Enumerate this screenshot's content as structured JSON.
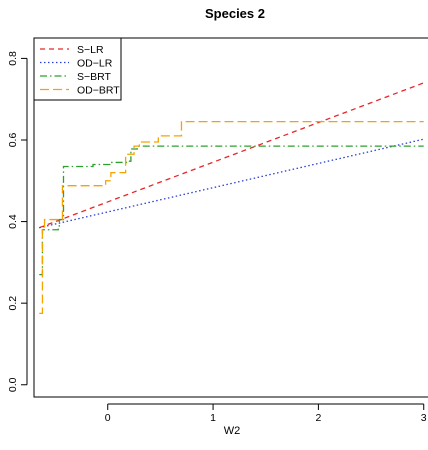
{
  "chart_data": {
    "type": "line",
    "title": "Species 2",
    "xlabel": "W2",
    "ylabel": "",
    "xlim": [
      -0.7,
      3.05
    ],
    "ylim": [
      -0.03,
      0.85
    ],
    "xticks": [
      0,
      1,
      2,
      3
    ],
    "yticks": [
      0.0,
      0.2,
      0.4,
      0.6,
      0.8
    ],
    "xtick_labels": [
      "0",
      "1",
      "2",
      "3"
    ],
    "ytick_labels": [
      "0.0",
      "0.2",
      "0.4",
      "0.6",
      "0.8"
    ],
    "grid": false,
    "legend_position": "top-left",
    "series": [
      {
        "name": "S−LR",
        "color": "#e8262a",
        "dash": "5,4",
        "step": false,
        "points": [
          [
            -0.65,
            0.385
          ],
          [
            3.0,
            0.74
          ]
        ]
      },
      {
        "name": "OD−LR",
        "color": "#2a3fd6",
        "dash": "1.5,2.5",
        "step": false,
        "points": [
          [
            -0.65,
            0.385
          ],
          [
            3.0,
            0.602
          ]
        ]
      },
      {
        "name": "S−BRT",
        "color": "#2ca02c",
        "dash": "7,3,1.5,3",
        "step": true,
        "points": [
          [
            -0.65,
            0.27
          ],
          [
            -0.62,
            0.38
          ],
          [
            -0.47,
            0.385
          ],
          [
            -0.46,
            0.405
          ],
          [
            -0.42,
            0.535
          ],
          [
            -0.15,
            0.535
          ],
          [
            -0.14,
            0.54
          ],
          [
            0.0,
            0.54
          ],
          [
            0.02,
            0.545
          ],
          [
            0.2,
            0.548
          ],
          [
            0.22,
            0.578
          ],
          [
            0.28,
            0.585
          ],
          [
            3.0,
            0.585
          ]
        ]
      },
      {
        "name": "OD−BRT",
        "color": "#f5a300",
        "dash": "9,4",
        "step": true,
        "points": [
          [
            -0.65,
            0.175
          ],
          [
            -0.62,
            0.385
          ],
          [
            -0.6,
            0.405
          ],
          [
            -0.5,
            0.405
          ],
          [
            -0.43,
            0.488
          ],
          [
            -0.04,
            0.488
          ],
          [
            -0.02,
            0.5
          ],
          [
            0.03,
            0.52
          ],
          [
            0.15,
            0.52
          ],
          [
            0.17,
            0.565
          ],
          [
            0.25,
            0.585
          ],
          [
            0.3,
            0.595
          ],
          [
            0.45,
            0.595
          ],
          [
            0.48,
            0.61
          ],
          [
            0.68,
            0.61
          ],
          [
            0.7,
            0.645
          ],
          [
            3.0,
            0.645
          ]
        ]
      }
    ]
  }
}
